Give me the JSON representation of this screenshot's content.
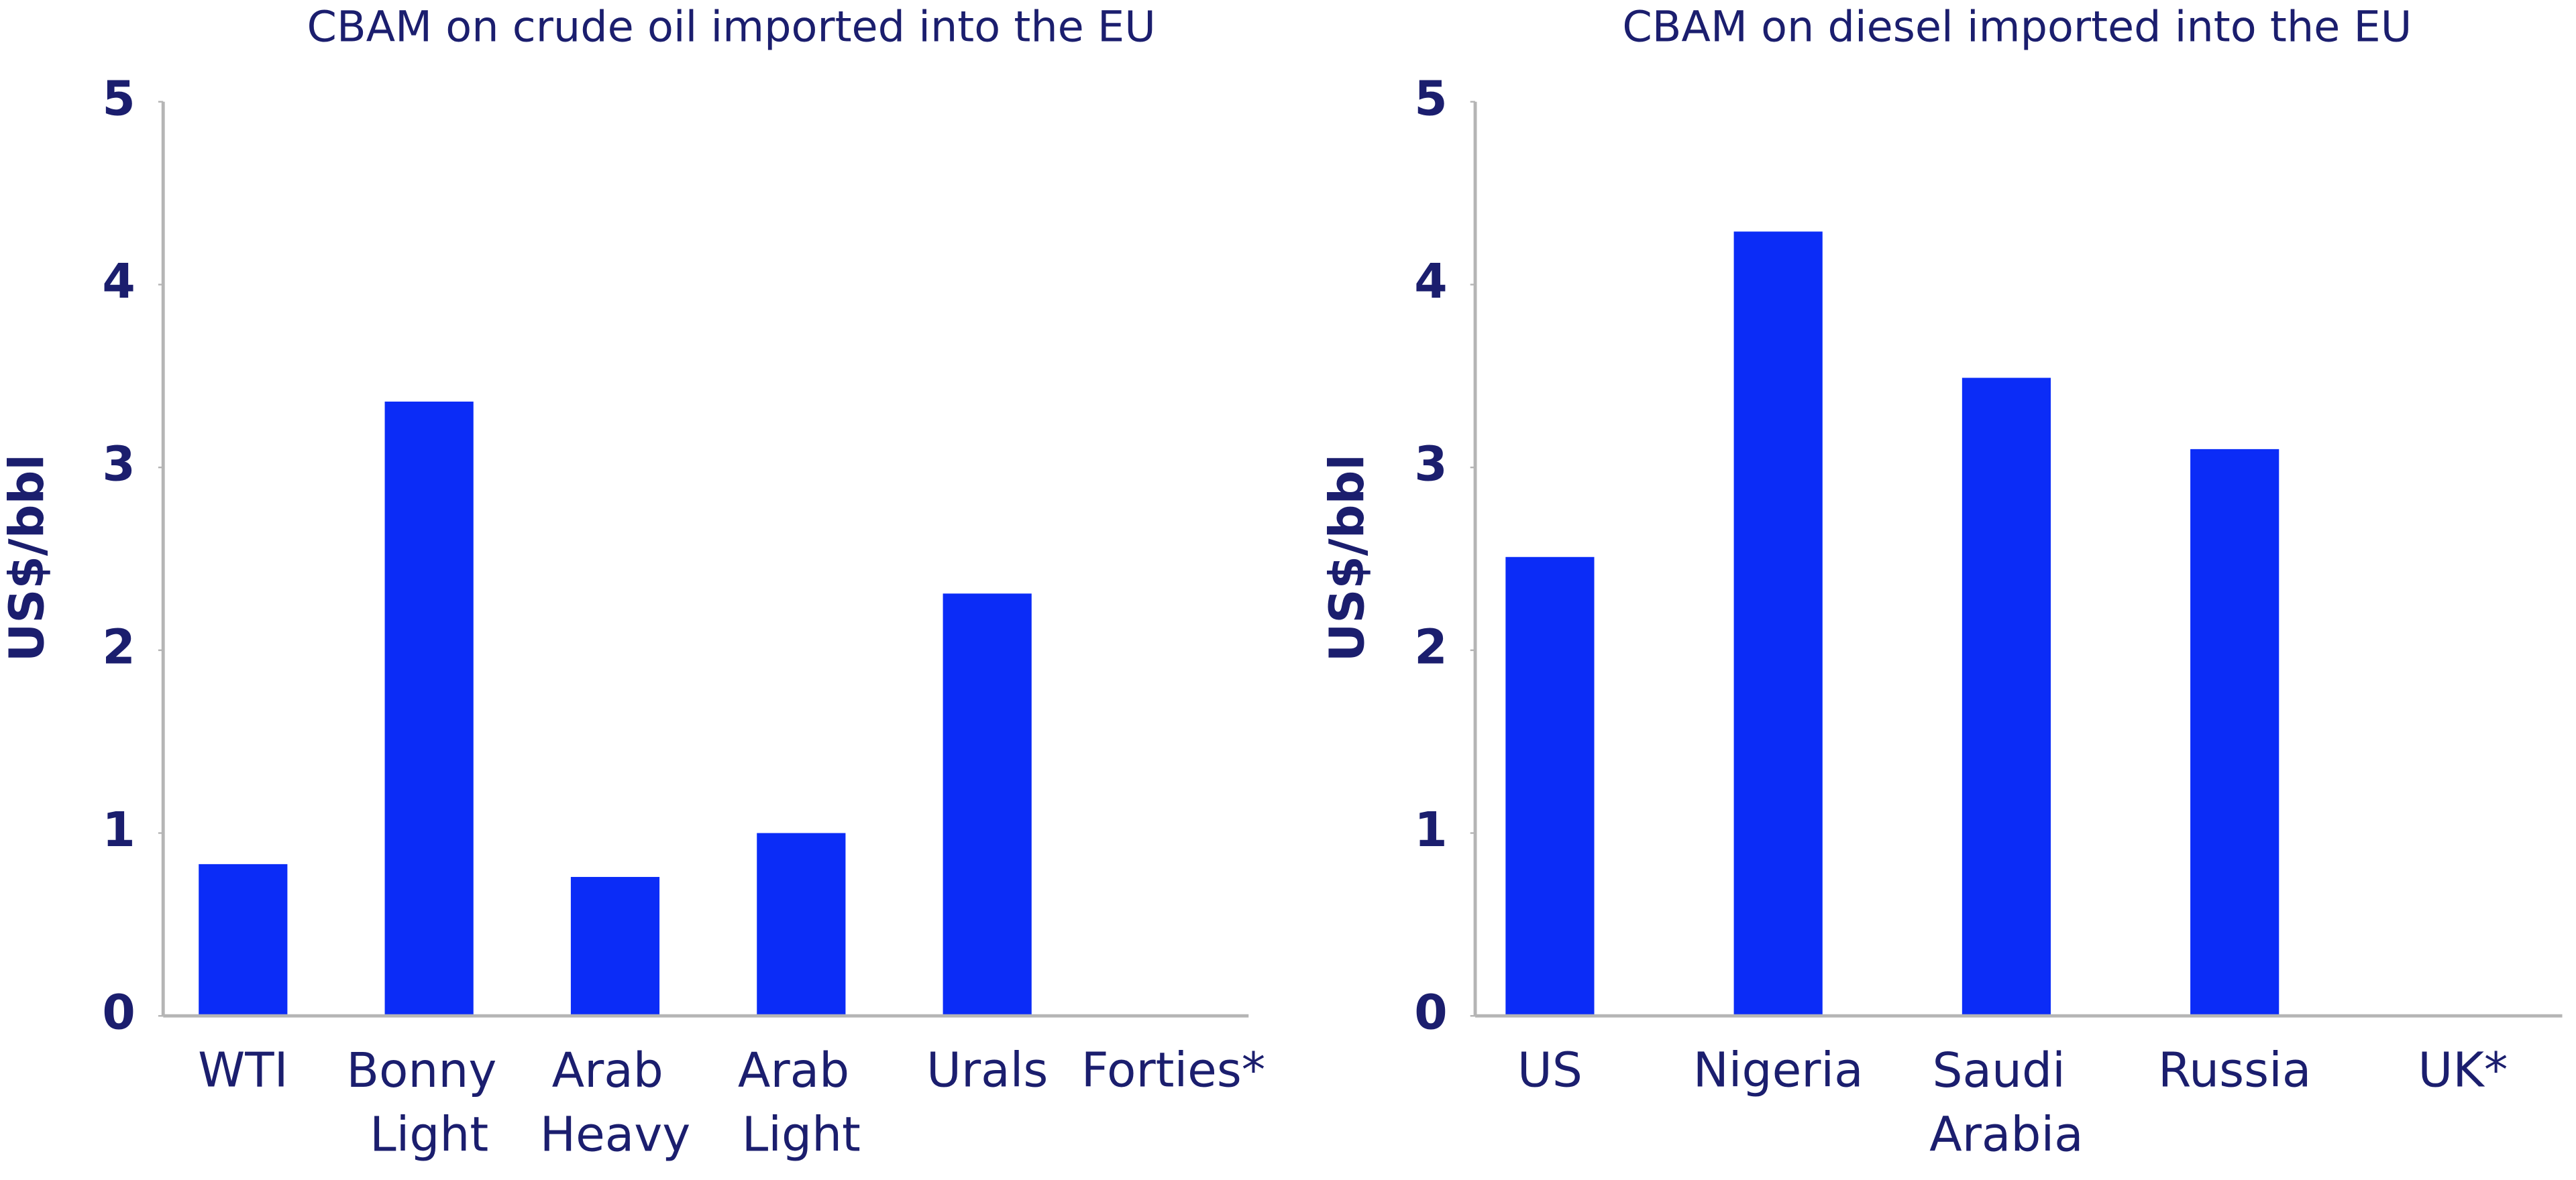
{
  "chart_data": [
    {
      "type": "bar",
      "title": "CBAM on crude oil imported into the EU",
      "y_label": "US$/bbl",
      "categories": [
        "WTI",
        "Bonny Light",
        "Arab Heavy",
        "Arab Light",
        "Urals",
        "Forties*"
      ],
      "values": [
        0.83,
        3.36,
        0.76,
        1.0,
        2.31,
        0
      ],
      "color": "#0b2cf7",
      "ylim": [
        0,
        5
      ],
      "yticks": [
        0,
        1,
        2,
        3,
        4,
        5
      ]
    },
    {
      "type": "bar",
      "title": "CBAM on diesel imported into the EU",
      "y_label": "US$/bbl",
      "categories": [
        "US",
        "Nigeria",
        "Saudi Arabia",
        "Russia",
        "UK*"
      ],
      "values": [
        2.51,
        4.29,
        3.49,
        3.1,
        0
      ],
      "color": "#0b2cf7",
      "ylim": [
        0,
        5
      ],
      "yticks": [
        0,
        1,
        2,
        3,
        4,
        5
      ]
    }
  ]
}
